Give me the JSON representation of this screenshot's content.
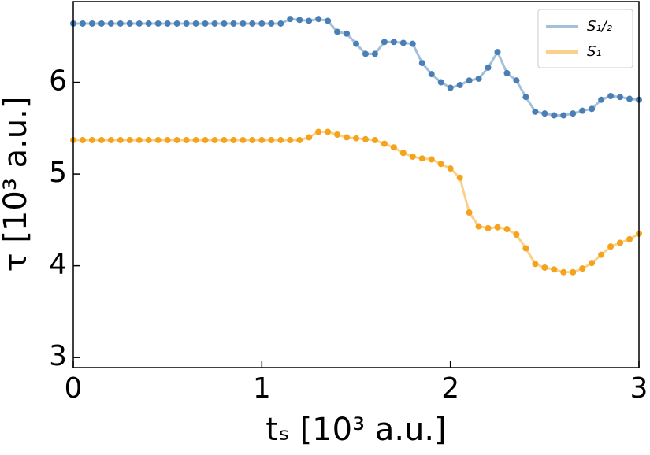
{
  "chart_data": {
    "type": "line",
    "xlabel": "tₛ [10³ a.u.]",
    "ylabel": "τ [10³ a.u.]",
    "x": [
      0,
      0.05,
      0.1,
      0.15,
      0.2,
      0.25,
      0.3,
      0.35,
      0.4,
      0.45,
      0.5,
      0.55,
      0.6,
      0.65,
      0.7,
      0.75,
      0.8,
      0.85,
      0.9,
      0.95,
      1.0,
      1.05,
      1.1,
      1.15,
      1.2,
      1.25,
      1.3,
      1.35,
      1.4,
      1.45,
      1.5,
      1.55,
      1.6,
      1.65,
      1.7,
      1.75,
      1.8,
      1.85,
      1.9,
      1.95,
      2.0,
      2.05,
      2.1,
      2.15,
      2.2,
      2.25,
      2.3,
      2.35,
      2.4,
      2.45,
      2.5,
      2.55,
      2.6,
      2.65,
      2.7,
      2.75,
      2.8,
      2.85,
      2.9,
      2.95,
      3.0
    ],
    "series": [
      {
        "name": "S₁/₂",
        "color": "#4a7fb5",
        "values": [
          6.64,
          6.64,
          6.64,
          6.64,
          6.64,
          6.64,
          6.64,
          6.64,
          6.64,
          6.64,
          6.64,
          6.64,
          6.64,
          6.64,
          6.64,
          6.64,
          6.64,
          6.64,
          6.64,
          6.64,
          6.64,
          6.64,
          6.64,
          6.69,
          6.68,
          6.67,
          6.69,
          6.67,
          6.55,
          6.53,
          6.42,
          6.31,
          6.31,
          6.44,
          6.44,
          6.43,
          6.42,
          6.21,
          6.09,
          6.0,
          5.94,
          5.97,
          6.02,
          6.04,
          6.16,
          6.33,
          6.1,
          6.02,
          5.84,
          5.68,
          5.66,
          5.64,
          5.64,
          5.66,
          5.69,
          5.71,
          5.81,
          5.85,
          5.84,
          5.82,
          5.81
        ]
      },
      {
        "name": "S₁",
        "color": "#f5a31a",
        "values": [
          5.37,
          5.37,
          5.37,
          5.37,
          5.37,
          5.37,
          5.37,
          5.37,
          5.37,
          5.37,
          5.37,
          5.37,
          5.37,
          5.37,
          5.37,
          5.37,
          5.37,
          5.37,
          5.37,
          5.37,
          5.37,
          5.37,
          5.37,
          5.37,
          5.37,
          5.4,
          5.46,
          5.46,
          5.43,
          5.4,
          5.39,
          5.38,
          5.37,
          5.33,
          5.29,
          5.23,
          5.19,
          5.17,
          5.16,
          5.11,
          5.06,
          4.96,
          4.58,
          4.43,
          4.41,
          4.42,
          4.4,
          4.34,
          4.19,
          4.02,
          3.98,
          3.96,
          3.93,
          3.93,
          3.97,
          4.03,
          4.12,
          4.21,
          4.25,
          4.29,
          4.35
        ]
      }
    ],
    "xlim": [
      0,
      3
    ],
    "xticks": [
      0,
      1,
      2,
      3
    ],
    "ylim": [
      2.89,
      6.88
    ],
    "yticks": [
      3,
      4,
      5,
      6
    ],
    "legend": "upper right"
  }
}
